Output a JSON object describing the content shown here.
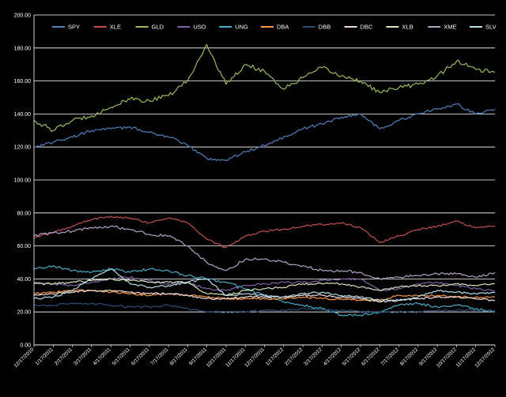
{
  "chart_data": {
    "type": "line",
    "title": "",
    "xlabel": "",
    "ylabel": "",
    "ylim": [
      0,
      200
    ],
    "y_ticks": [
      "0.00",
      "20.00",
      "40.00",
      "60.00",
      "80.00",
      "100.00",
      "120.00",
      "140.00",
      "160.00",
      "180.00",
      "200.00"
    ],
    "grid": "horizontal",
    "legend_position": "top",
    "x_tick_labels": [
      "12/17/2010",
      "1/17/2011",
      "2/17/2011",
      "3/17/2011",
      "4/17/2011",
      "5/17/2011",
      "6/17/2011",
      "7/17/2011",
      "8/17/2011",
      "9/17/2011",
      "10/17/2011",
      "11/17/2011",
      "12/17/2011",
      "1/17/2012",
      "2/17/2012",
      "3/17/2012",
      "4/17/2012",
      "5/17/2012",
      "6/17/2012",
      "7/17/2012",
      "8/17/2012",
      "9/17/2012",
      "10/17/2012",
      "11/17/2012",
      "12/17/2012"
    ],
    "series": [
      {
        "name": "SPY",
        "color": "#4f81bd",
        "values": [
          120,
          123,
          126,
          130,
          131,
          132,
          129,
          126,
          121,
          113,
          112,
          117,
          121,
          126,
          131,
          134,
          138,
          140,
          131,
          136,
          140,
          143,
          146,
          140,
          143
        ]
      },
      {
        "name": "XLE",
        "color": "#c0504d",
        "values": [
          65,
          68,
          72,
          76,
          78,
          77,
          74,
          77,
          74,
          64,
          59,
          66,
          69,
          70,
          72,
          73,
          74,
          71,
          62,
          66,
          70,
          72,
          75,
          71,
          72
        ]
      },
      {
        "name": "GLD",
        "color": "#9bbb59",
        "values": [
          136,
          130,
          136,
          139,
          144,
          149,
          148,
          151,
          160,
          182,
          158,
          170,
          166,
          155,
          162,
          168,
          163,
          160,
          153,
          156,
          158,
          163,
          172,
          167,
          165
        ]
      },
      {
        "name": "USO",
        "color": "#8064a2",
        "values": [
          38,
          37,
          36,
          38,
          40,
          41,
          39,
          37,
          38,
          34,
          33,
          36,
          37,
          38,
          38,
          39,
          40,
          40,
          33,
          34,
          37,
          38,
          36,
          34,
          33
        ]
      },
      {
        "name": "UNG",
        "color": "#4bacc6",
        "values": [
          46,
          48,
          45,
          44,
          46,
          44,
          46,
          45,
          42,
          40,
          38,
          34,
          30,
          26,
          24,
          22,
          18,
          18,
          20,
          24,
          25,
          23,
          24,
          22,
          20
        ]
      },
      {
        "name": "DBA",
        "color": "#f79646",
        "values": [
          31,
          32,
          33,
          33,
          32,
          31,
          30,
          31,
          30,
          29,
          28,
          28,
          28,
          28,
          29,
          28,
          28,
          27,
          27,
          30,
          30,
          30,
          29,
          29,
          29
        ]
      },
      {
        "name": "DBB",
        "color": "#2c4d75",
        "values": [
          24,
          24,
          25,
          25,
          24,
          23,
          23,
          24,
          22,
          20,
          20,
          20,
          21,
          21,
          22,
          21,
          21,
          20,
          20,
          20,
          20,
          21,
          21,
          21,
          21
        ]
      },
      {
        "name": "DBC",
        "color": "#f2dcdb",
        "values": [
          30,
          31,
          32,
          33,
          33,
          32,
          31,
          31,
          30,
          28,
          28,
          29,
          29,
          29,
          30,
          30,
          29,
          28,
          26,
          27,
          28,
          29,
          29,
          28,
          27
        ]
      },
      {
        "name": "XLB",
        "color": "#d7e4bd",
        "values": [
          37,
          37,
          38,
          39,
          40,
          39,
          38,
          38,
          38,
          31,
          30,
          33,
          34,
          35,
          37,
          37,
          37,
          35,
          33,
          35,
          36,
          36,
          37,
          36,
          37
        ]
      },
      {
        "name": "XME",
        "color": "#b3a2c7",
        "values": [
          66,
          68,
          69,
          71,
          72,
          70,
          67,
          66,
          60,
          50,
          45,
          52,
          52,
          50,
          48,
          45,
          45,
          44,
          40,
          41,
          42,
          43,
          43,
          41,
          44
        ]
      },
      {
        "name": "SLV",
        "color": "#b7dee8",
        "values": [
          28,
          29,
          33,
          40,
          46,
          37,
          35,
          36,
          38,
          40,
          30,
          31,
          30,
          29,
          31,
          32,
          30,
          29,
          27,
          27,
          29,
          33,
          32,
          31,
          32
        ]
      }
    ]
  }
}
